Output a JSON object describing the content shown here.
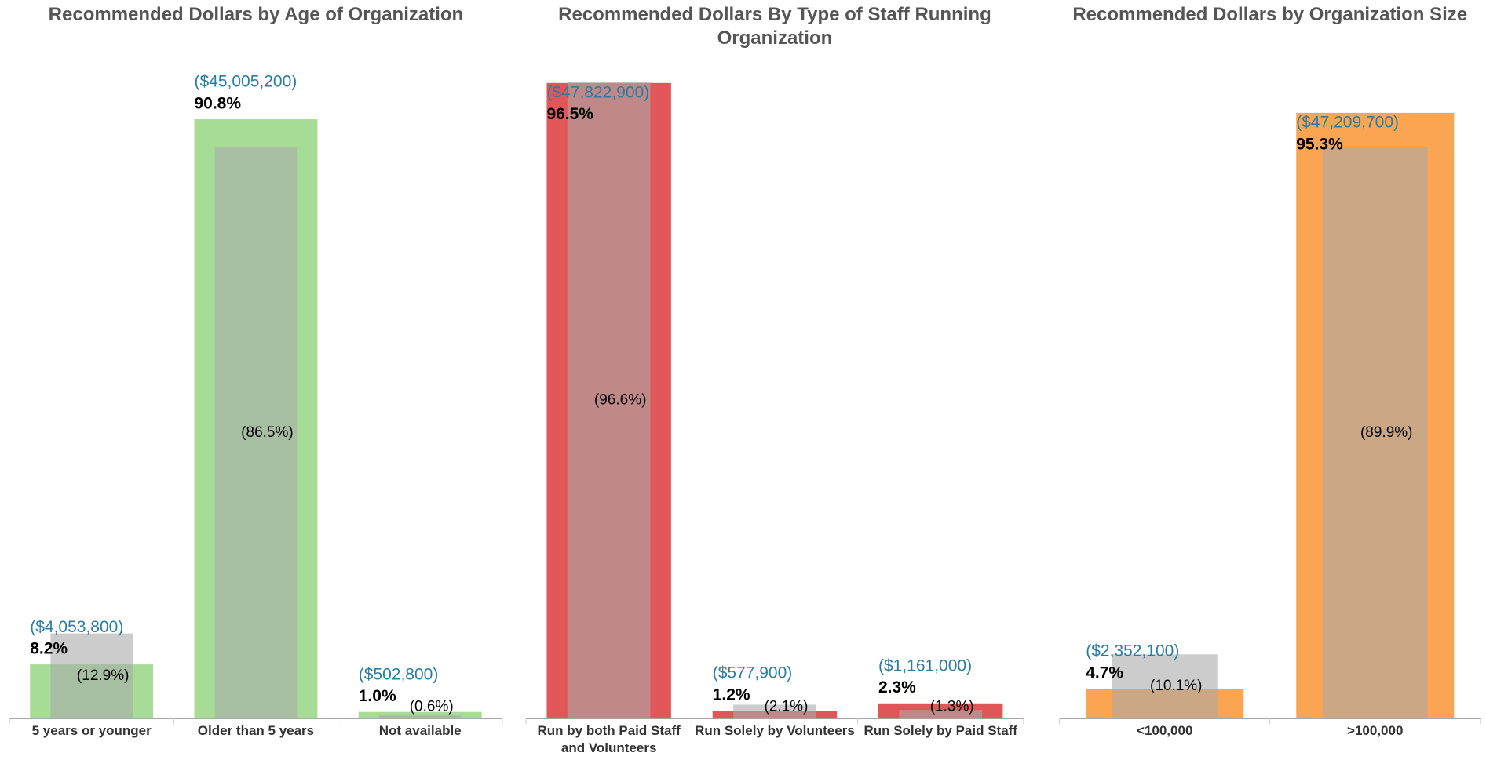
{
  "chart_data": [
    {
      "type": "bar",
      "title": "Recommended Dollars by Age of Organization",
      "categories": [
        "5 years or younger",
        "Older than 5 years",
        "Not available"
      ],
      "ylim": [
        0,
        96.3
      ],
      "series": [
        {
          "color": "#a6dc96",
          "values": [
            8.2,
            90.8,
            1.0
          ],
          "value_labels": [
            "8.2%",
            "90.8%",
            "1.0%"
          ]
        },
        {
          "color": "#aaaaaa",
          "values": [
            12.9,
            86.5,
            0.6
          ],
          "value_labels": [
            "(12.9%)",
            "(86.5%)",
            "(0.6%)"
          ]
        }
      ],
      "dollar_labels": [
        "($4,053,800)",
        "($45,005,200)",
        "($502,800)"
      ]
    },
    {
      "type": "bar",
      "title": "Recommended Dollars By Type of Staff Running Organization",
      "categories": [
        "Run by both Paid Staff and Volunteers",
        "Run Solely by Volunteers",
        "Run Solely by Paid Staff"
      ],
      "ylim": [
        0,
        96.5
      ],
      "series": [
        {
          "color": "#e15759",
          "values": [
            96.5,
            1.2,
            2.3
          ],
          "value_labels": [
            "96.5%",
            "1.2%",
            "2.3%"
          ]
        },
        {
          "color": "#aaaaaa",
          "values": [
            96.6,
            2.1,
            1.3
          ],
          "value_labels": [
            "(96.6%)",
            "(2.1%)",
            "(1.3%)"
          ]
        }
      ],
      "dollar_labels": [
        "($47,822,900)",
        "($577,900)",
        "($1,161,000)"
      ]
    },
    {
      "type": "bar",
      "title": "Recommended Dollars by Organization Size",
      "categories": [
        "<100,000",
        ">100,000"
      ],
      "ylim": [
        0,
        100
      ],
      "series": [
        {
          "color": "#f9a551",
          "values": [
            4.7,
            95.3
          ],
          "value_labels": [
            "4.7%",
            "95.3%"
          ]
        },
        {
          "color": "#aaaaaa",
          "values": [
            10.1,
            89.9
          ],
          "value_labels": [
            "(10.1%)",
            "(89.9%)"
          ]
        }
      ],
      "dollar_labels": [
        "($2,352,100)",
        "($47,209,700)"
      ]
    }
  ]
}
